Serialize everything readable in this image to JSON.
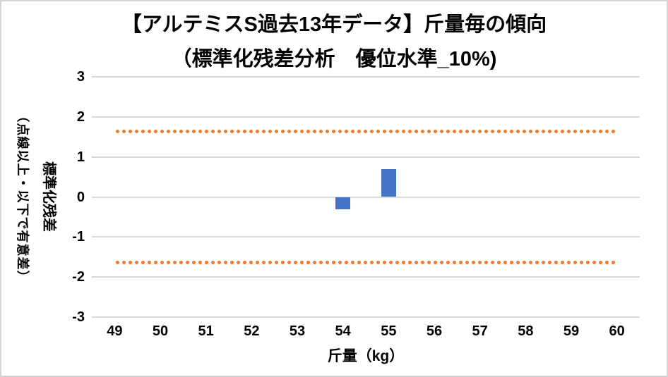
{
  "chart": {
    "title_line1": "【アルテミスS過去13年データ】斤量毎の傾向",
    "title_line2": "（標準化残差分析　優位水準_10%)",
    "x_axis_title": "斤量（kg）",
    "y_axis_title_main": "標準化残差",
    "y_axis_title_sub": "（点線以上・以下で有意差）"
  },
  "chart_data": {
    "type": "bar",
    "title": "【アルテミスS過去13年データ】斤量毎の傾向",
    "subtitle": "（標準化残差分析　優位水準_10%)",
    "xlabel": "斤量（kg）",
    "ylabel": "標準化残差（点線以上・以下で有意差）",
    "categories": [
      "49",
      "50",
      "51",
      "52",
      "53",
      "54",
      "55",
      "56",
      "57",
      "58",
      "59",
      "60"
    ],
    "values": [
      null,
      null,
      null,
      null,
      null,
      -0.3,
      0.7,
      null,
      null,
      null,
      null,
      null
    ],
    "ylim": [
      -3,
      3
    ],
    "yticks": [
      3,
      2,
      1,
      0,
      -1,
      -2,
      -3
    ],
    "significance_threshold": 1.645,
    "threshold_line_style": "dotted",
    "grid": true,
    "legend": "none",
    "colors": {
      "bar": "#4472C4",
      "threshold": "#ED7D31",
      "gridline": "#D9D9D9",
      "text": "#000000"
    }
  }
}
